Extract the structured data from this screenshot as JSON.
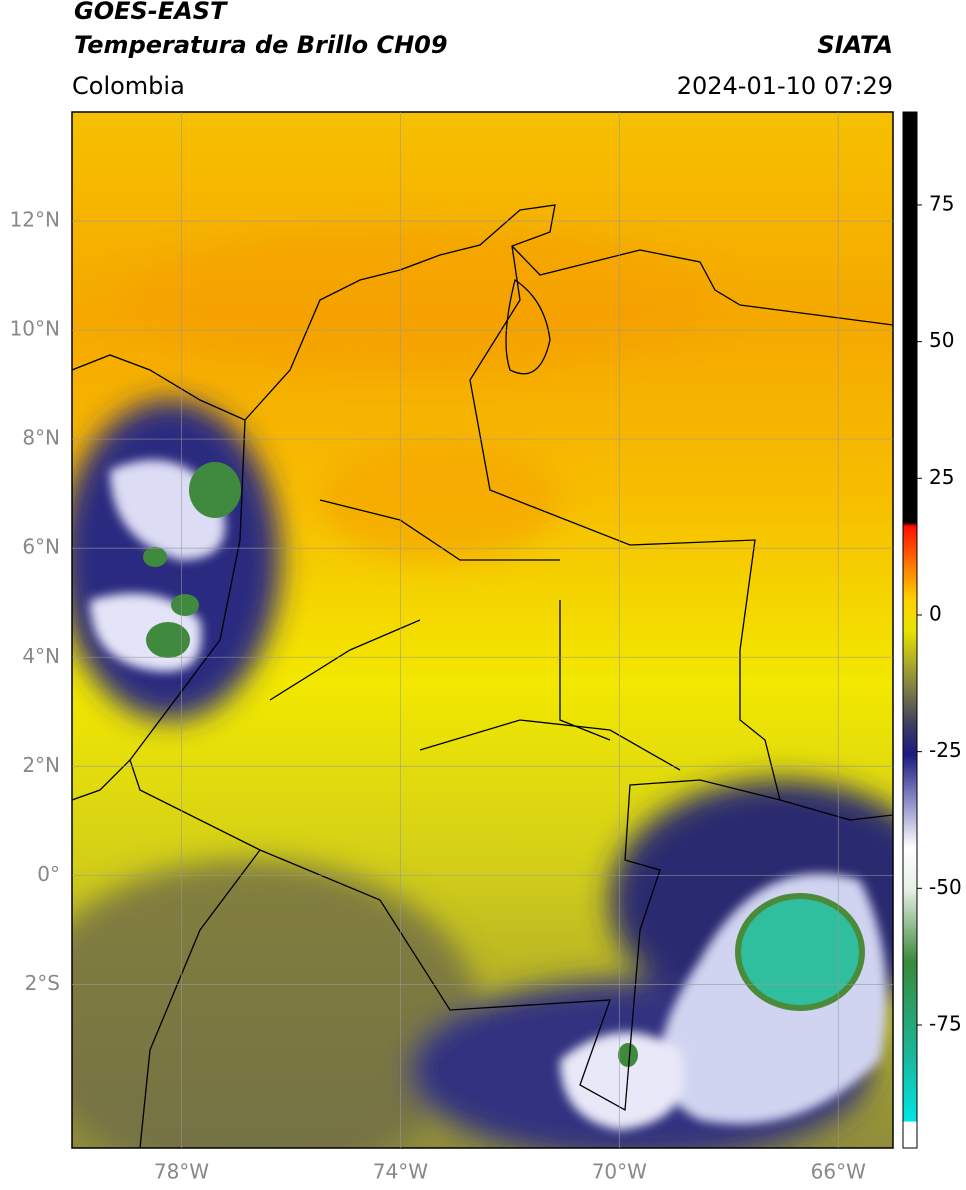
{
  "header": {
    "title": "GOES-EAST",
    "subtitle": "Temperatura de Brillo CH09",
    "source": "SIATA",
    "region": "Colombia",
    "datetime": "2024-01-10 07:29"
  },
  "map": {
    "xlim": [
      -80,
      -65
    ],
    "ylim": [
      -5,
      14
    ],
    "xticks": [
      {
        "value": -78,
        "label": "78°W"
      },
      {
        "value": -74,
        "label": "74°W"
      },
      {
        "value": -70,
        "label": "70°W"
      },
      {
        "value": -66,
        "label": "66°W"
      }
    ],
    "yticks": [
      {
        "value": 12,
        "label": "12°N"
      },
      {
        "value": 10,
        "label": "10°N"
      },
      {
        "value": 8,
        "label": "8°N"
      },
      {
        "value": 6,
        "label": "6°N"
      },
      {
        "value": 4,
        "label": "4°N"
      },
      {
        "value": 2,
        "label": "2°N"
      },
      {
        "value": 0,
        "label": "0°"
      },
      {
        "value": -2,
        "label": "2°S"
      }
    ],
    "grid": true
  },
  "colorbar": {
    "lim": [
      -97.5,
      92
    ],
    "ticks": [
      75,
      50,
      25,
      0,
      -25,
      -50,
      -75
    ]
  }
}
